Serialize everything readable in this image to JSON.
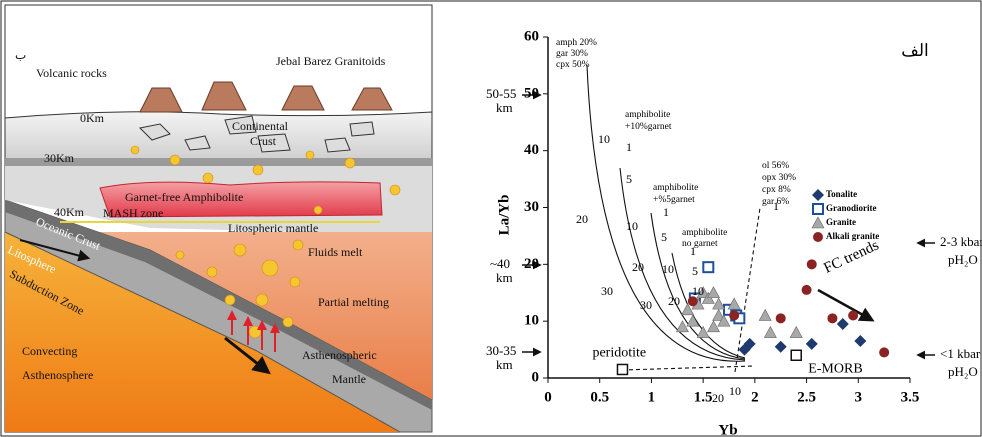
{
  "diagram": {
    "labels": [
      "ب",
      "Volcanic rocks",
      "Jebal Barez Granitoids",
      "0Km",
      "Continental",
      "Crust",
      "30Km",
      "Garnet-free Amphibolite",
      "40Km",
      "MASH zone",
      "Litospheric mantle",
      "Oceanic Crust",
      "Litosphere",
      "Fluids melt",
      "Subduction Zone",
      "Partial melting",
      "Convecting",
      "Asthenosphere",
      "Asthenospheric",
      "Mantle"
    ]
  },
  "chart_data": {
    "type": "scatter",
    "panel_label": "الف",
    "x_label": "Yb",
    "y_label": "La/Yb",
    "xlim": [
      0,
      3.5
    ],
    "ylim": [
      0,
      60
    ],
    "xticks": [
      0,
      0.5,
      1,
      1.5,
      2,
      2.5,
      3,
      3.5
    ],
    "yticks": [
      0,
      10,
      20,
      30,
      40,
      50,
      60
    ],
    "series": [
      {
        "name": "Tonalite",
        "color": "#1f3a6e",
        "marker": "diamond",
        "x": [
          1.9,
          1.95,
          2.25,
          2.55,
          2.85,
          3.02
        ],
        "values": [
          5,
          6,
          5.5,
          6,
          9.5,
          6.5
        ]
      },
      {
        "name": "Granodiorite",
        "color": "#1f4e9a",
        "marker": "open-square",
        "x": [
          1.42,
          1.55,
          1.75,
          1.82,
          1.85
        ],
        "values": [
          14,
          19.5,
          12,
          11,
          10.5
        ]
      },
      {
        "name": "Granite",
        "color": "#a8a8a8",
        "marker": "triangle",
        "x": [
          1.3,
          1.35,
          1.4,
          1.45,
          1.5,
          1.5,
          1.55,
          1.6,
          1.6,
          1.65,
          1.65,
          1.7,
          1.8,
          2.1,
          2.15,
          2.4
        ],
        "values": [
          9,
          12,
          10,
          13,
          15,
          8,
          14,
          15,
          9,
          13,
          11,
          10,
          13,
          11,
          8,
          8
        ]
      },
      {
        "name": "Alkali granite",
        "color": "#8b2323",
        "marker": "circle",
        "x": [
          1.4,
          1.8,
          2.25,
          2.5,
          2.55,
          2.75,
          2.95,
          3.25
        ],
        "values": [
          13.5,
          11,
          10.5,
          15.5,
          20,
          10.5,
          11,
          4.5
        ]
      }
    ],
    "reference_points": [
      {
        "label": "peridotite",
        "x": 0.72,
        "y": 1.5
      },
      {
        "label": "E-MORB",
        "x": 2.4,
        "y": 4
      }
    ],
    "annotations": [
      "amph 20%",
      "gar 30%",
      "cpx 50%",
      "amphibolite",
      "+10%garnet",
      "amphibolite",
      "+%5garnet",
      "amphibolite",
      "no garnet",
      "ol 56%",
      "opx 30%",
      "cpx 8%",
      "gar 6%",
      "FC trends"
    ],
    "curve_labels": [
      "10",
      "20",
      "30",
      "1",
      "5",
      "10",
      "20",
      "30",
      "1",
      "5",
      "10",
      "20",
      "1",
      "5",
      "10",
      "20",
      "10",
      "1"
    ],
    "depth_labels": [
      "50-55",
      "km",
      "~40",
      "km",
      "30-35",
      "km"
    ],
    "pressure_labels": [
      "2-3 kbar",
      "pH₂O",
      "<1 kbar",
      "pH₂O"
    ]
  }
}
